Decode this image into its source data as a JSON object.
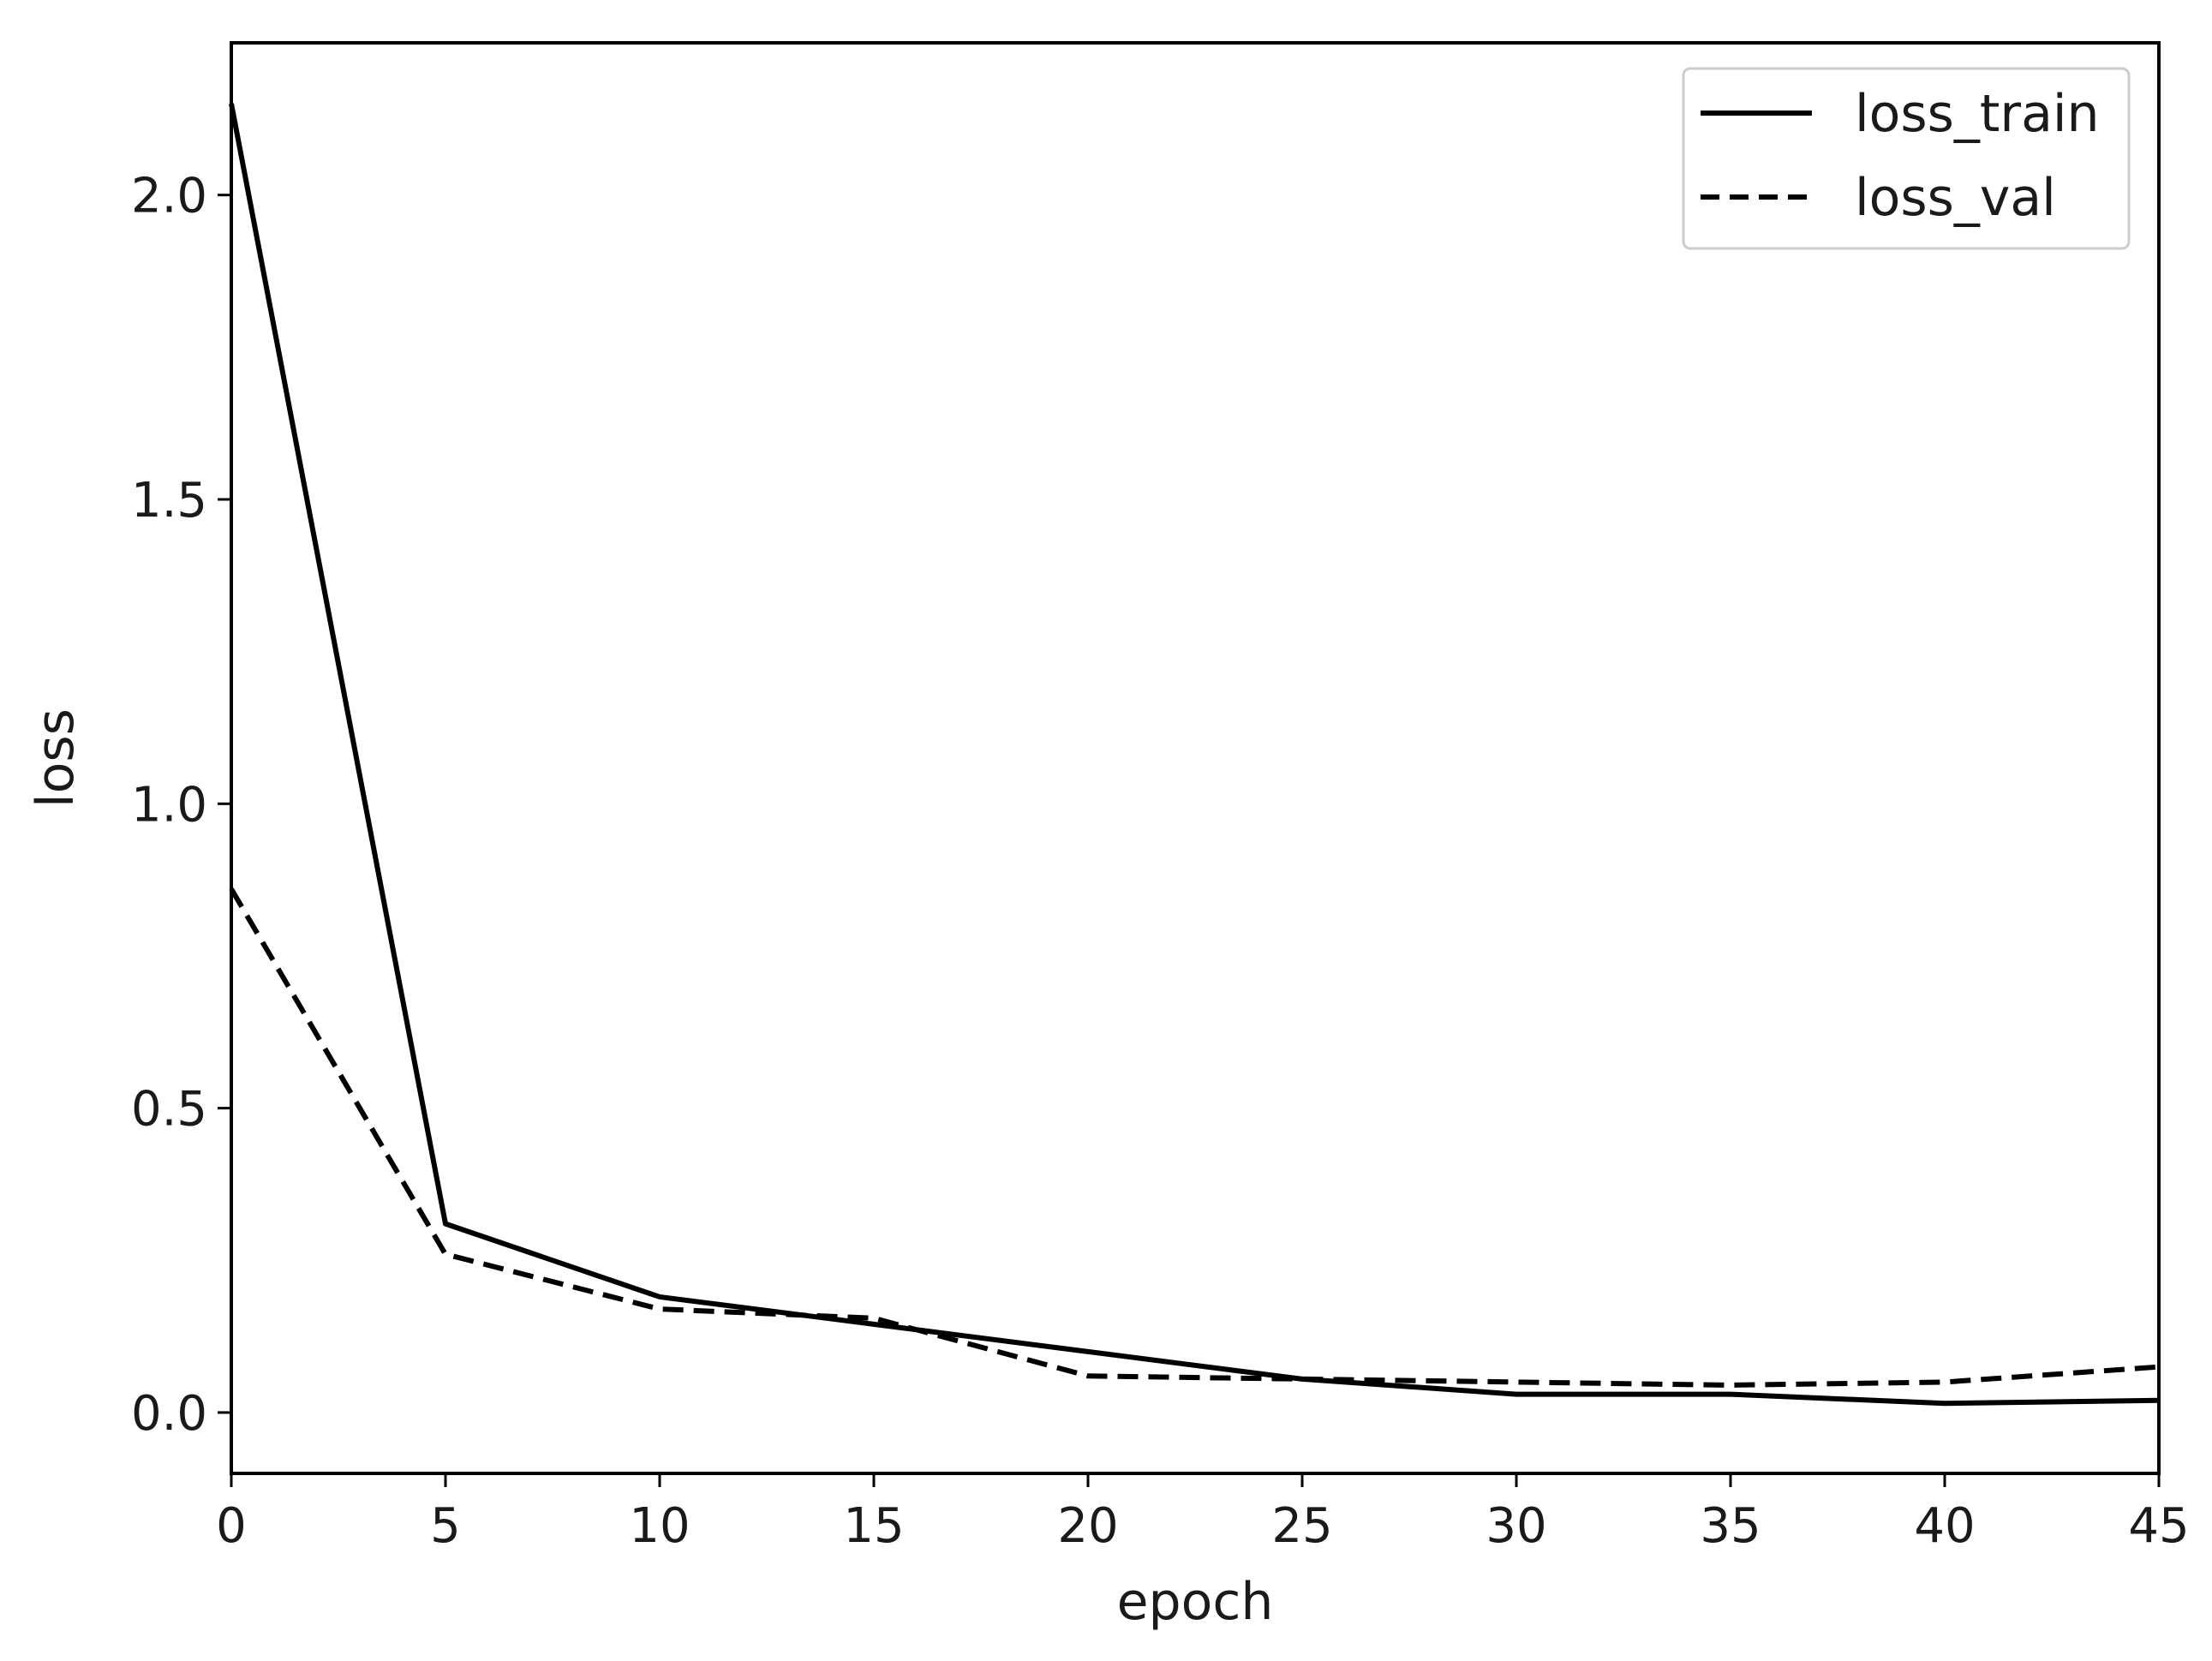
{
  "chart_data": {
    "type": "line",
    "title": "",
    "xlabel": "epoch",
    "ylabel": "loss",
    "xlim": [
      0,
      45
    ],
    "ylim": [
      -0.1,
      2.25
    ],
    "xticks": [
      0,
      5,
      10,
      15,
      20,
      25,
      30,
      35,
      40,
      45
    ],
    "yticks": [
      0.0,
      0.5,
      1.0,
      1.5,
      2.0
    ],
    "xtick_labels": [
      "0",
      "5",
      "10",
      "15",
      "20",
      "25",
      "30",
      "35",
      "40",
      "45"
    ],
    "ytick_labels": [
      "0.0",
      "0.5",
      "1.0",
      "1.5",
      "2.0"
    ],
    "grid": false,
    "legend": "top-right",
    "x": [
      0,
      5,
      10,
      15,
      20,
      25,
      30,
      35,
      40,
      45
    ],
    "series": [
      {
        "name": "loss_train",
        "style": "solid",
        "color": "#000000",
        "values": [
          2.15,
          0.31,
          0.19,
          0.145,
          0.1,
          0.055,
          0.03,
          0.03,
          0.015,
          0.02
        ]
      },
      {
        "name": "loss_val",
        "style": "dashed",
        "color": "#000000",
        "values": [
          0.86,
          0.26,
          0.17,
          0.155,
          0.06,
          0.055,
          0.05,
          0.045,
          0.05,
          0.075
        ]
      }
    ]
  }
}
